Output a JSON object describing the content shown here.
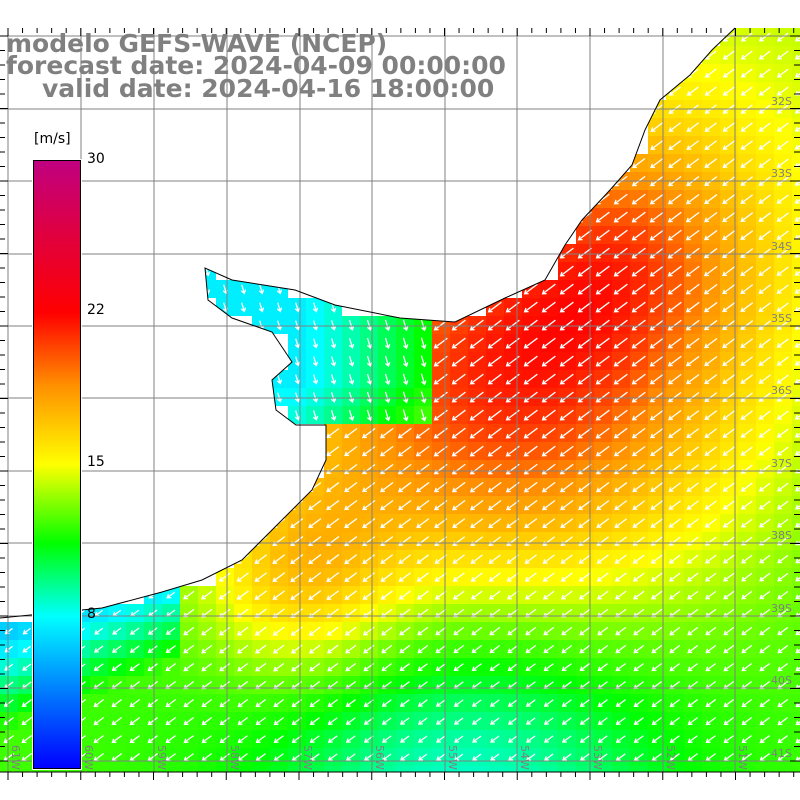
{
  "title": {
    "line1": "modelo GEFS-WAVE (NCEP)",
    "line2": "forecast date: 2024-04-09 00:00:00",
    "line3": "valid date: 2024-04-16 18:00:00"
  },
  "colorbar": {
    "unit": "[m/s]",
    "labels": [
      "30",
      "22",
      "15",
      "8"
    ],
    "colors": [
      "#0000ff",
      "#0080ff",
      "#00ffff",
      "#00ff00",
      "#ffff00",
      "#ff9000",
      "#ff0000",
      "#c00080"
    ]
  },
  "axes": {
    "lat_labels": [
      "32S",
      "33S",
      "34S",
      "35S",
      "36S",
      "37S",
      "38S",
      "39S",
      "40S",
      "41S"
    ],
    "lon_labels": [
      "61W",
      "60W",
      "59W",
      "58W",
      "57W",
      "56W",
      "55W",
      "54W",
      "53W",
      "52W",
      "51W"
    ]
  }
}
